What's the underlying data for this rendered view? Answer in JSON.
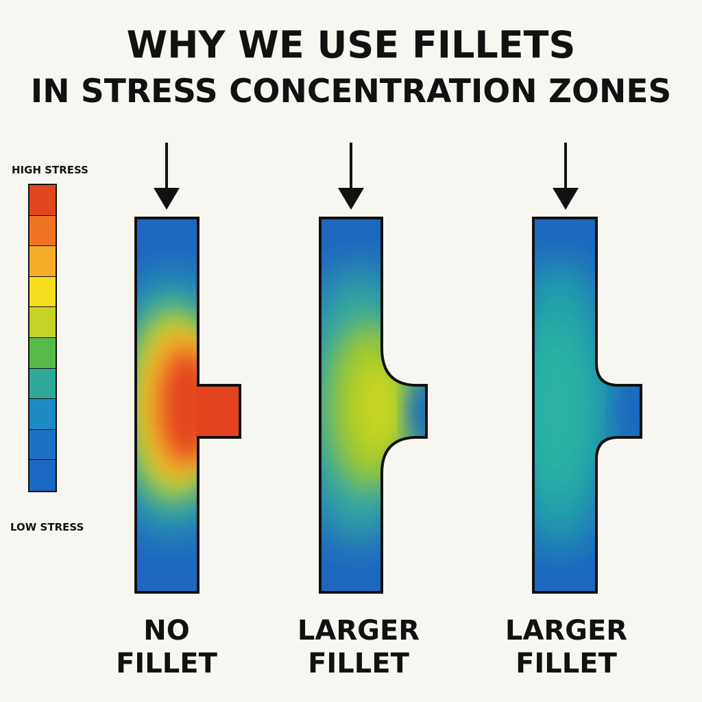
{
  "title": {
    "line1": "WHY WE USE FILLETS",
    "line2": "IN STRESS CONCENTRATION ZONES"
  },
  "legend": {
    "high_label": "HIGH STRESS",
    "low_label": "LOW STRESS",
    "colors": [
      "#e2461e",
      "#ee7424",
      "#f5ad2a",
      "#f6dd1f",
      "#c5d226",
      "#56bb48",
      "#2fa89a",
      "#1e8ac3",
      "#1b70c4",
      "#1a68c2"
    ]
  },
  "panels": [
    {
      "label_line1": "NO",
      "label_line2": "FILLET",
      "fillet": "none"
    },
    {
      "label_line1": "LARGER",
      "label_line2": "FILLET",
      "fillet": "larger"
    },
    {
      "label_line1": "LARGER",
      "label_line2": "FILLET",
      "fillet": "larger"
    }
  ],
  "colors": {
    "background": "#f8f6f1",
    "outline": "#111111",
    "low_stress": "#1d67c0",
    "high_stress": "#e3441d"
  }
}
